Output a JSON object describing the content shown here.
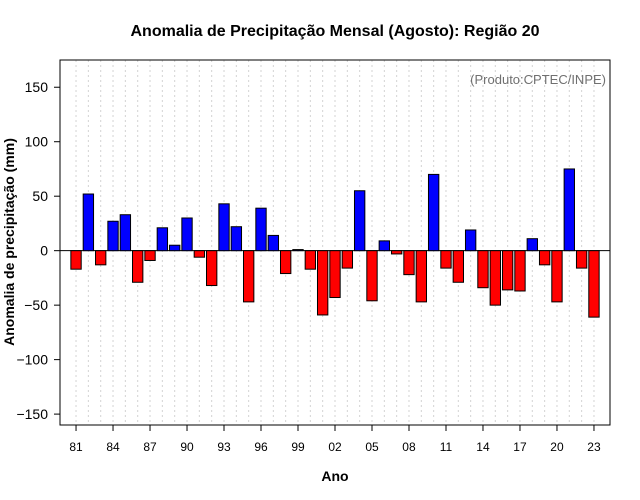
{
  "chart_data": {
    "type": "bar",
    "title": "Anomalia de Precipitação Mensal (Agosto): Região 20",
    "xlabel": "Ano",
    "ylabel": "Anomalia de precipitação (mm)",
    "credit": "(Produto:CPTEC/INPE)",
    "ylim": [
      -160,
      175
    ],
    "yticks": [
      150,
      100,
      50,
      0,
      -50,
      -100,
      -150
    ],
    "ytick_labels": [
      "150",
      "100",
      "50",
      "0",
      "−50",
      "−100",
      "−150"
    ],
    "xlim": [
      1979.7,
      2024.3
    ],
    "xticks": [
      1981,
      1984,
      1987,
      1990,
      1993,
      1996,
      1999,
      2002,
      2005,
      2008,
      2011,
      2014,
      2017,
      2020,
      2023
    ],
    "xtick_labels": [
      "81",
      "84",
      "87",
      "90",
      "93",
      "96",
      "99",
      "02",
      "05",
      "08",
      "11",
      "14",
      "17",
      "20",
      "23"
    ],
    "grid": "vertical dotted",
    "colors": {
      "positive": "#0000ff",
      "negative": "#ff0000",
      "zero_line": "#000000",
      "grid": "#d3d3d3"
    },
    "years": [
      1981,
      1982,
      1983,
      1984,
      1985,
      1986,
      1987,
      1988,
      1989,
      1990,
      1991,
      1992,
      1993,
      1994,
      1995,
      1996,
      1997,
      1998,
      1999,
      2000,
      2001,
      2002,
      2003,
      2004,
      2005,
      2006,
      2007,
      2008,
      2009,
      2010,
      2011,
      2012,
      2013,
      2014,
      2015,
      2016,
      2017,
      2018,
      2019,
      2020,
      2021,
      2022,
      2023
    ],
    "values": [
      -17,
      52,
      -13,
      27,
      33,
      -29,
      -9,
      21,
      5,
      30,
      -6,
      -32,
      43,
      22,
      -47,
      39,
      14,
      -21,
      1,
      -17,
      -59,
      -43,
      -16,
      55,
      -46,
      9,
      -3,
      -22,
      -47,
      70,
      -16,
      -29,
      19,
      -34,
      -50,
      -36,
      -37,
      11,
      -13,
      -47,
      75,
      -16,
      -61
    ]
  }
}
